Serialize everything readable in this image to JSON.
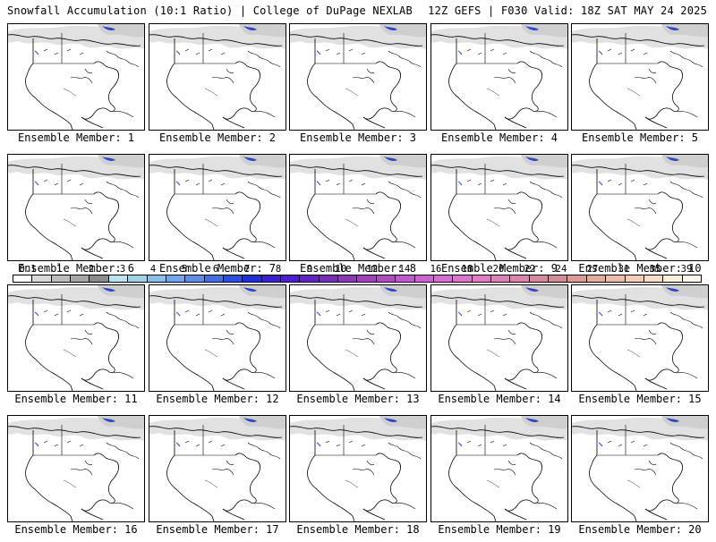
{
  "header": {
    "title_left": "Snowfall Accumulation (10:1 Ratio) | College of DuPage NEXLAB",
    "title_right": "12Z GEFS | F030 Valid: 18Z SAT MAY 24 2025"
  },
  "panels": [
    {
      "label": "Ensemble Member: 1"
    },
    {
      "label": "Ensemble Member: 2"
    },
    {
      "label": "Ensemble Member: 3"
    },
    {
      "label": "Ensemble Member: 4"
    },
    {
      "label": "Ensemble Member: 5"
    },
    {
      "label": "Ensemble Member: 6"
    },
    {
      "label": "Ensemble Member: 7"
    },
    {
      "label": "Ensemble Member: 8"
    },
    {
      "label": "Ensemble Member: 9"
    },
    {
      "label": "Ensemble Member: 10"
    },
    {
      "label": "Ensemble Member: 11"
    },
    {
      "label": "Ensemble Member: 12"
    },
    {
      "label": "Ensemble Member: 13"
    },
    {
      "label": "Ensemble Member: 14"
    },
    {
      "label": "Ensemble Member: 15"
    },
    {
      "label": "Ensemble Member: 16"
    },
    {
      "label": "Ensemble Member: 17"
    },
    {
      "label": "Ensemble Member: 18"
    },
    {
      "label": "Ensemble Member: 19"
    },
    {
      "label": "Ensemble Member: 20"
    }
  ],
  "colorbar": {
    "labels": [
      "0.1",
      "1",
      "2",
      "3",
      "4",
      "5",
      "6",
      "7",
      "8",
      "9",
      "10",
      "12",
      "14",
      "16",
      "18",
      "20",
      "22",
      "24",
      "27",
      "31",
      "35",
      "39"
    ],
    "colors": [
      "#ffffff",
      "#d9d9d9",
      "#bdbdbd",
      "#a6a6a6",
      "#8c8c8c",
      "#b8e3f0",
      "#9fd3ea",
      "#86bff0",
      "#6fa8ee",
      "#5b8eea",
      "#3f6fe8",
      "#2a4fe3",
      "#1f2ee0",
      "#3b1fd6",
      "#4f1fcf",
      "#6324c7",
      "#7a2bbf",
      "#8f35bd",
      "#a43fbf",
      "#b24ac6",
      "#c257cf",
      "#cf61d4",
      "#d86bd6",
      "#de73d0",
      "#e27ac6",
      "#e07fb8",
      "#dd83ac",
      "#d9869f",
      "#d88a94",
      "#e09a94",
      "#e8ab9c",
      "#efbca6",
      "#f4cdb4",
      "#f8dec8",
      "#fbeedc",
      "#fdf6ea"
    ]
  }
}
